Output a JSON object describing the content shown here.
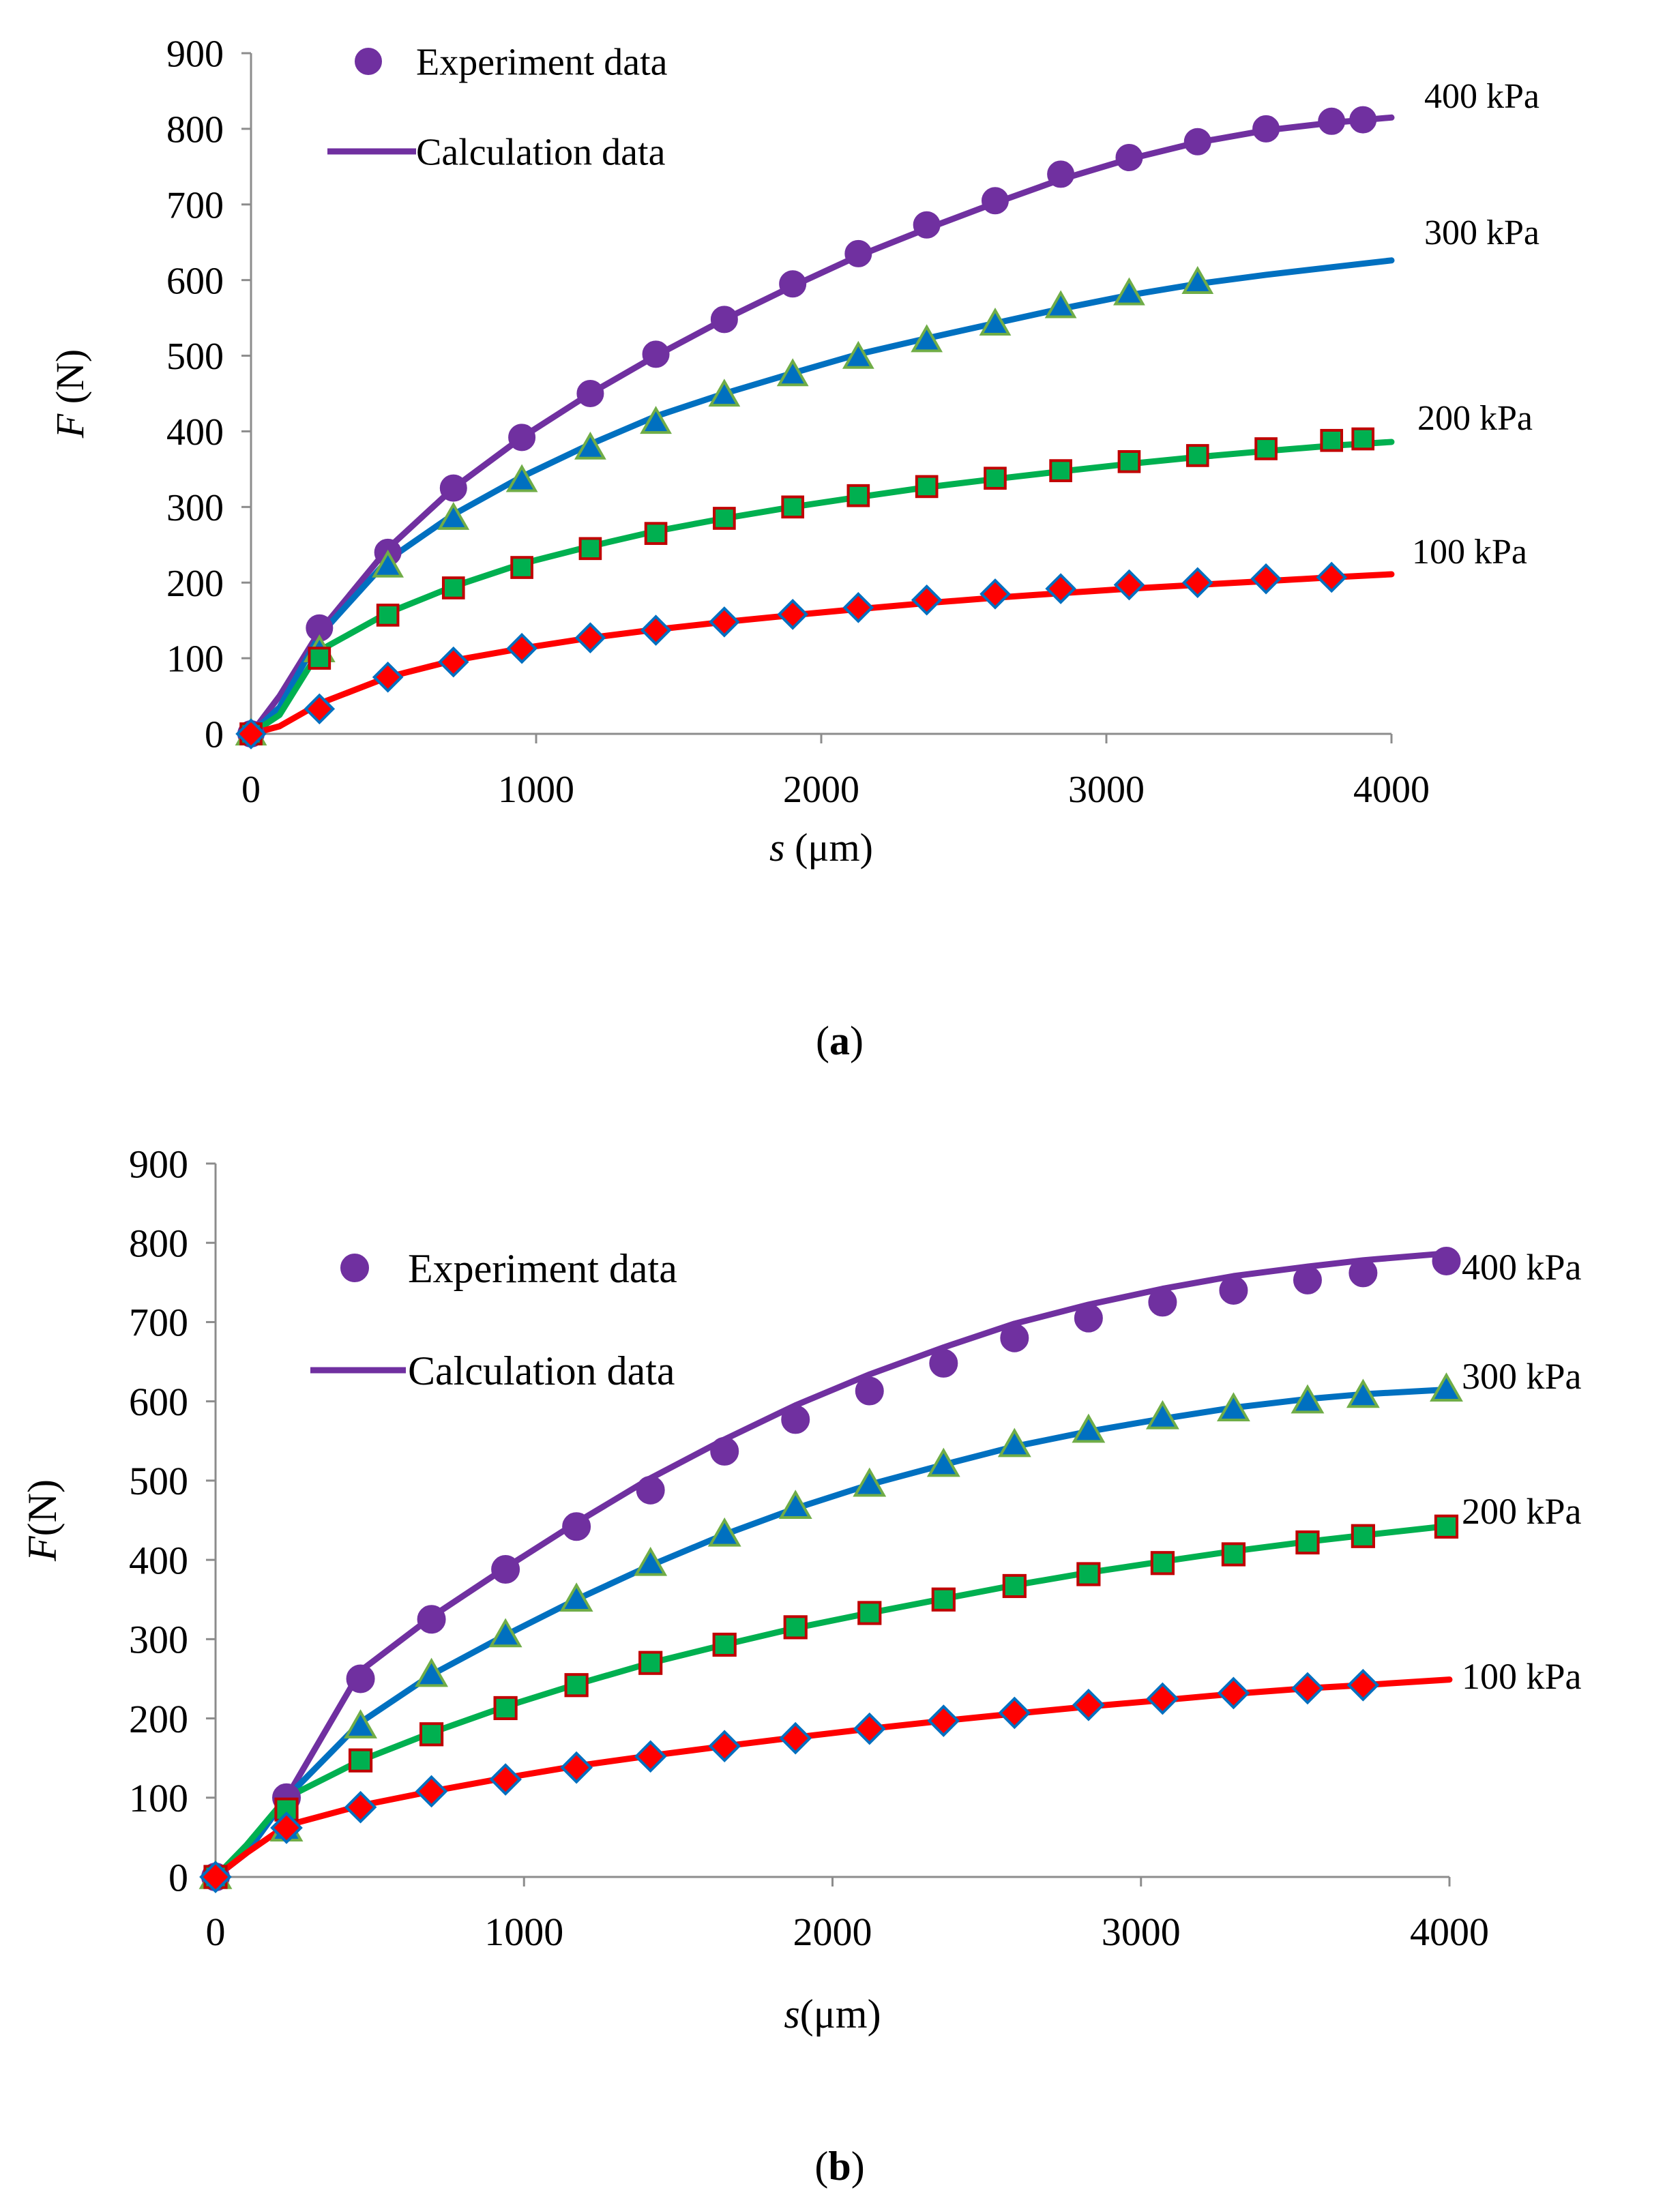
{
  "chart_data": [
    {
      "type": "line",
      "panel_label": "a",
      "xlabel": "s (μm)",
      "xlabel_var": "s",
      "xlabel_unit": " (μm)",
      "ylabel": "F (N)",
      "ylabel_var": "F",
      "ylabel_unit": " (N)",
      "xlim": [
        0,
        4000
      ],
      "ylim": [
        0,
        900
      ],
      "xticks": [
        0,
        1000,
        2000,
        3000,
        4000
      ],
      "yticks": [
        0,
        100,
        200,
        300,
        400,
        500,
        600,
        700,
        800,
        900
      ],
      "grid": false,
      "legend": {
        "position": "top-left",
        "experiment_label": "Experiment data",
        "calculation_label": "Calculation data"
      },
      "series": [
        {
          "name": "400 kPa",
          "color": "#7030a0",
          "marker": "circle",
          "marker_fill": "#7030a0",
          "marker_stroke": "#7030a0",
          "experiment": {
            "x": [
              0,
              240,
              480,
              710,
              950,
              1190,
              1420,
              1660,
              1900,
              2130,
              2370,
              2610,
              2840,
              3080,
              3320,
              3560,
              3790,
              3900
            ],
            "y": [
              0,
              140,
              240,
              325,
              392,
              450,
              502,
              548,
              595,
              635,
              673,
              705,
              740,
              762,
              783,
              800,
              810,
              812
            ]
          },
          "calculation": {
            "x": [
              0,
              100,
              240,
              480,
              710,
              950,
              1190,
              1420,
              1660,
              1900,
              2130,
              2370,
              2610,
              2840,
              3080,
              3320,
              3560,
              3790,
              4000
            ],
            "y": [
              0,
              50,
              135,
              245,
              325,
              392,
              450,
              500,
              548,
              592,
              632,
              668,
              702,
              733,
              760,
              782,
              798,
              808,
              815
            ]
          }
        },
        {
          "name": "300 kPa",
          "color": "#0070c0",
          "marker": "triangle",
          "marker_fill": "#0070c0",
          "marker_stroke": "#70ad47",
          "experiment": {
            "x": [
              0,
              240,
              480,
              710,
              950,
              1190,
              1420,
              1660,
              1900,
              2130,
              2370,
              2610,
              2840,
              3080,
              3320
            ],
            "y": [
              0,
              110,
              222,
              285,
              335,
              378,
              412,
              448,
              475,
              498,
              520,
              542,
              565,
              582,
              597
            ]
          },
          "calculation": {
            "x": [
              0,
              100,
              240,
              480,
              710,
              950,
              1190,
              1420,
              1660,
              1900,
              2130,
              2370,
              2610,
              2840,
              3080,
              3320,
              3560,
              3790,
              4000
            ],
            "y": [
              0,
              35,
              130,
              230,
              290,
              340,
              383,
              420,
              450,
              477,
              502,
              523,
              543,
              562,
              580,
              595,
              607,
              617,
              626
            ]
          }
        },
        {
          "name": "200 kPa",
          "color": "#00b050",
          "marker": "square",
          "marker_fill": "#00b050",
          "marker_stroke": "#c00000",
          "experiment": {
            "x": [
              0,
              240,
              480,
              710,
              950,
              1190,
              1420,
              1660,
              1900,
              2130,
              2370,
              2610,
              2840,
              3080,
              3320,
              3560,
              3790,
              3900
            ],
            "y": [
              0,
              100,
              157,
              193,
              220,
              245,
              265,
              285,
              300,
              315,
              327,
              338,
              348,
              360,
              368,
              377,
              388,
              390
            ]
          },
          "calculation": {
            "x": [
              0,
              100,
              240,
              480,
              710,
              950,
              1190,
              1420,
              1660,
              1900,
              2130,
              2370,
              2610,
              2840,
              3080,
              3320,
              3560,
              3790,
              4000
            ],
            "y": [
              0,
              25,
              110,
              160,
              195,
              225,
              248,
              268,
              285,
              300,
              313,
              326,
              337,
              347,
              357,
              366,
              374,
              381,
              386
            ]
          }
        },
        {
          "name": "100 kPa",
          "color": "#ff0000",
          "marker": "diamond",
          "marker_fill": "#ff0000",
          "marker_stroke": "#0070c0",
          "experiment": {
            "x": [
              0,
              240,
              480,
              710,
              950,
              1190,
              1420,
              1660,
              1900,
              2130,
              2370,
              2610,
              2840,
              3080,
              3320,
              3560,
              3790
            ],
            "y": [
              0,
              33,
              75,
              95,
              113,
              127,
              137,
              148,
              158,
              167,
              177,
              185,
              192,
              197,
              200,
              205,
              207
            ]
          },
          "calculation": {
            "x": [
              0,
              100,
              240,
              480,
              710,
              950,
              1190,
              1420,
              1660,
              1900,
              2130,
              2370,
              2610,
              2840,
              3080,
              3320,
              3560,
              3790,
              4000
            ],
            "y": [
              0,
              10,
              40,
              75,
              97,
              113,
              127,
              138,
              148,
              157,
              165,
              173,
              180,
              186,
              192,
              197,
              202,
              207,
              211
            ]
          }
        }
      ]
    },
    {
      "type": "line",
      "panel_label": "b",
      "xlabel": "s(μm)",
      "xlabel_var": "s",
      "xlabel_unit": "(μm)",
      "ylabel": "F(N)",
      "ylabel_var": "F",
      "ylabel_unit": "(N)",
      "xlim": [
        0,
        4000
      ],
      "ylim": [
        0,
        900
      ],
      "xticks": [
        0,
        1000,
        2000,
        3000,
        4000
      ],
      "yticks": [
        0,
        100,
        200,
        300,
        400,
        500,
        600,
        700,
        800,
        900
      ],
      "grid": false,
      "legend": {
        "position": "top-left",
        "experiment_label": "Experiment data",
        "calculation_label": "Calculation data"
      },
      "series": [
        {
          "name": "400 kPa",
          "color": "#7030a0",
          "marker": "circle",
          "marker_fill": "#7030a0",
          "marker_stroke": "#7030a0",
          "experiment": {
            "x": [
              0,
              230,
              470,
              700,
              940,
              1170,
              1410,
              1650,
              1880,
              2120,
              2360,
              2590,
              2830,
              3070,
              3300,
              3540,
              3720,
              3990
            ],
            "y": [
              0,
              100,
              250,
              325,
              388,
              442,
              488,
              537,
              577,
              613,
              648,
              680,
              705,
              725,
              740,
              753,
              762,
              777
            ]
          },
          "calculation": {
            "x": [
              0,
              100,
              230,
              470,
              700,
              940,
              1170,
              1410,
              1650,
              1880,
              2120,
              2360,
              2590,
              2830,
              3070,
              3300,
              3540,
              3720,
              4000
            ],
            "y": [
              0,
              30,
              100,
              260,
              328,
              390,
              447,
              503,
              552,
              595,
              634,
              668,
              698,
              722,
              742,
              758,
              770,
              778,
              787
            ]
          }
        },
        {
          "name": "300 kPa",
          "color": "#0070c0",
          "marker": "triangle",
          "marker_fill": "#0070c0",
          "marker_stroke": "#70ad47",
          "experiment": {
            "x": [
              0,
              230,
              470,
              700,
              940,
              1170,
              1410,
              1650,
              1880,
              2120,
              2360,
              2590,
              2830,
              3070,
              3300,
              3540,
              3720,
              3990
            ],
            "y": [
              0,
              60,
              190,
              255,
              305,
              350,
              395,
              432,
              467,
              495,
              520,
              545,
              563,
              580,
              590,
              600,
              607,
              615
            ]
          },
          "calculation": {
            "x": [
              0,
              100,
              230,
              470,
              700,
              940,
              1170,
              1410,
              1650,
              1880,
              2120,
              2360,
              2590,
              2830,
              3070,
              3300,
              3540,
              3720,
              4000
            ],
            "y": [
              0,
              30,
              100,
              195,
              255,
              305,
              350,
              393,
              432,
              465,
              495,
              520,
              543,
              562,
              578,
              592,
              603,
              609,
              615
            ]
          }
        },
        {
          "name": "200 kPa",
          "color": "#00b050",
          "marker": "square",
          "marker_fill": "#00b050",
          "marker_stroke": "#c00000",
          "experiment": {
            "x": [
              0,
              230,
              470,
              700,
              940,
              1170,
              1410,
              1650,
              1880,
              2120,
              2360,
              2590,
              2830,
              3070,
              3300,
              3540,
              3720,
              3990
            ],
            "y": [
              0,
              85,
              147,
              180,
              213,
              242,
              270,
              293,
              315,
              333,
              350,
              367,
              382,
              396,
              407,
              422,
              430,
              442
            ]
          },
          "calculation": {
            "x": [
              0,
              100,
              230,
              470,
              700,
              940,
              1170,
              1410,
              1650,
              1880,
              2120,
              2360,
              2590,
              2830,
              3070,
              3300,
              3540,
              3720,
              4000
            ],
            "y": [
              0,
              40,
              100,
              147,
              182,
              215,
              243,
              270,
              293,
              314,
              333,
              351,
              368,
              384,
              398,
              411,
              423,
              431,
              443
            ]
          }
        },
        {
          "name": "100 kPa",
          "color": "#ff0000",
          "marker": "diamond",
          "marker_fill": "#ff0000",
          "marker_stroke": "#0070c0",
          "experiment": {
            "x": [
              0,
              230,
              470,
              700,
              940,
              1170,
              1410,
              1650,
              1880,
              2120,
              2360,
              2590,
              2830,
              3070,
              3300,
              3540,
              3720
            ],
            "y": [
              0,
              62,
              88,
              108,
              123,
              138,
              152,
              165,
              175,
              187,
              197,
              207,
              217,
              225,
              232,
              238,
              242
            ]
          },
          "calculation": {
            "x": [
              0,
              100,
              230,
              470,
              700,
              940,
              1170,
              1410,
              1650,
              1880,
              2120,
              2360,
              2590,
              2830,
              3070,
              3300,
              3540,
              3720,
              4000
            ],
            "y": [
              0,
              30,
              65,
              90,
              108,
              125,
              140,
              153,
              165,
              176,
              187,
              197,
              206,
              215,
              223,
              231,
              238,
              242,
              249
            ]
          }
        }
      ]
    }
  ]
}
